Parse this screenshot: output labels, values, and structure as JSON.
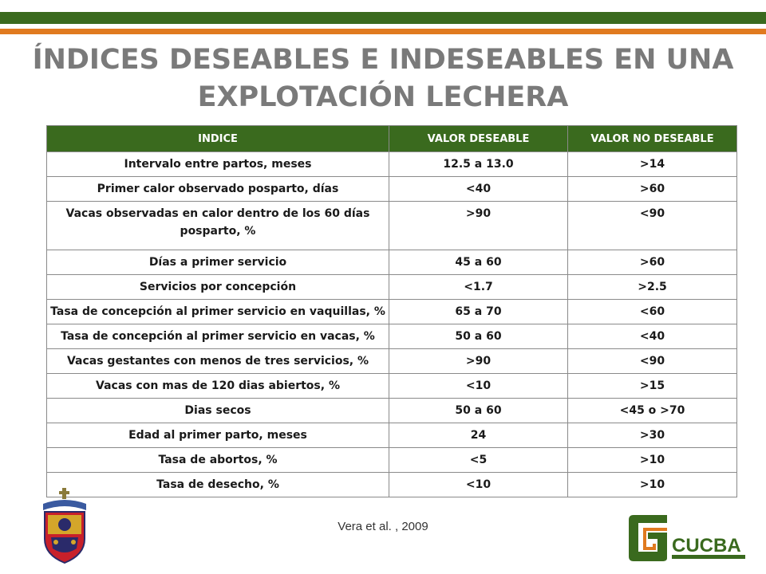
{
  "title_line1": "ÍNDICES DESEABLES E INDESEABLES EN UNA",
  "title_line2": "EXPLOTACIÓN LECHERA",
  "table": {
    "headers": [
      "INDICE",
      "VALOR DESEABLE",
      "VALOR NO DESEABLE"
    ],
    "rows": [
      [
        "Intervalo entre partos, meses",
        "12.5 a 13.0",
        ">14"
      ],
      [
        "Primer calor observado posparto, días",
        "<40",
        ">60"
      ],
      [
        "Vacas observadas en calor dentro de los 60 días posparto, %",
        ">90",
        "<90"
      ],
      [
        "Días a primer servicio",
        "45 a 60",
        ">60"
      ],
      [
        "Servicios por concepción",
        "<1.7",
        ">2.5"
      ],
      [
        "Tasa de concepción al primer servicio en vaquillas, %",
        "65 a 70",
        "<60"
      ],
      [
        "Tasa de concepción al primer servicio en vacas, %",
        "50 a 60",
        "<40"
      ],
      [
        "Vacas gestantes con menos de tres servicios, %",
        ">90",
        "<90"
      ],
      [
        "Vacas con mas de 120 dias abiertos, %",
        "<10",
        ">15"
      ],
      [
        "Dias secos",
        "50 a 60",
        "<45 o >70"
      ],
      [
        "Edad al primer parto, meses",
        "24",
        ">30"
      ],
      [
        "Tasa de abortos, %",
        "<5",
        ">10"
      ],
      [
        "Tasa de desecho, %",
        "<10",
        ">10"
      ]
    ]
  },
  "source": "Vera et al. , 2009",
  "logo_right_text": "CUCBA",
  "colors": {
    "header_green": "#3a6a1e",
    "accent_orange": "#e07a1f",
    "title_gray": "#7a7a7a"
  }
}
